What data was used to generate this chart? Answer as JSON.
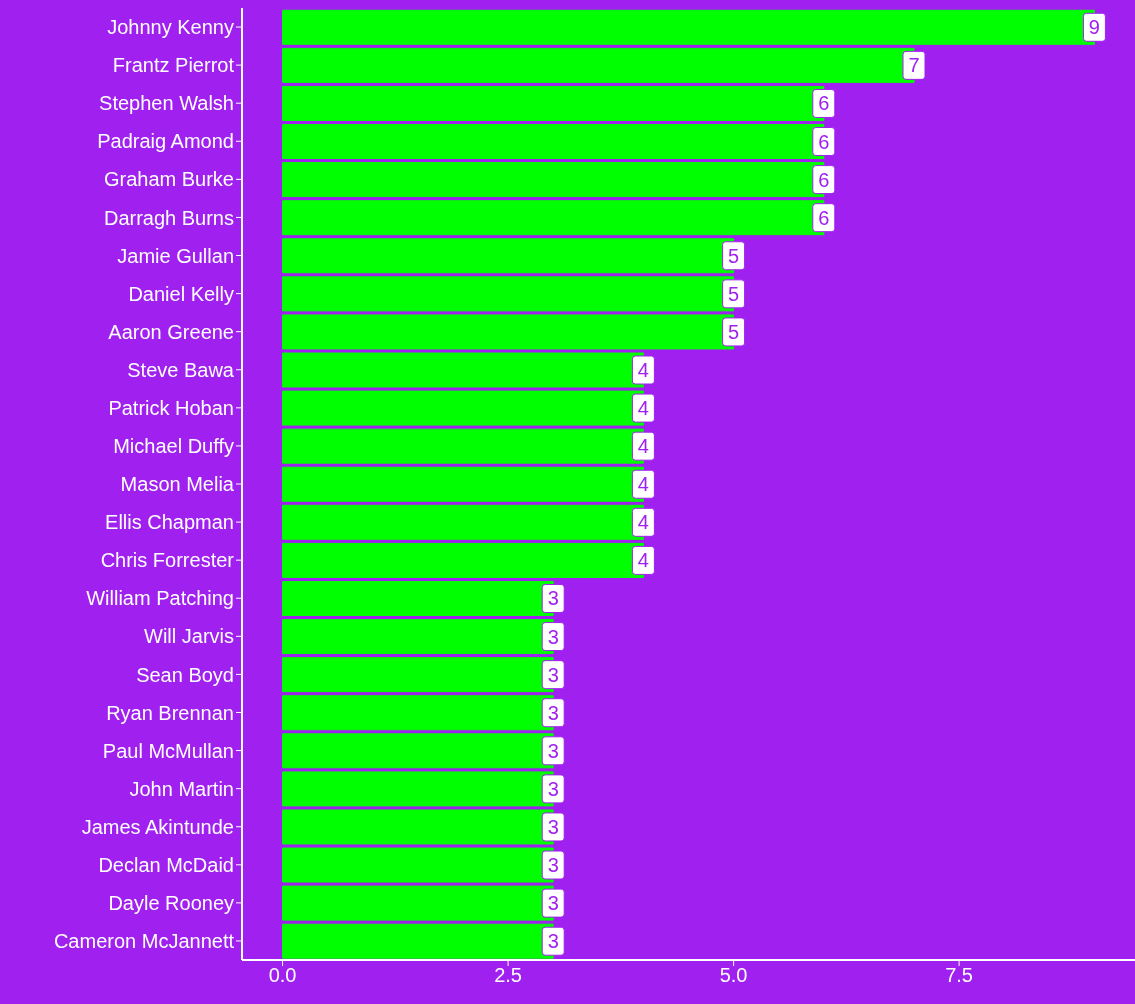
{
  "chart_data": {
    "type": "bar",
    "orientation": "horizontal",
    "categories": [
      "Johnny Kenny",
      "Frantz Pierrot",
      "Stephen Walsh",
      "Padraig Amond",
      "Graham Burke",
      "Darragh Burns",
      "Jamie Gullan",
      "Daniel Kelly",
      "Aaron Greene",
      "Steve Bawa",
      "Patrick Hoban",
      "Michael Duffy",
      "Mason Melia",
      "Ellis Chapman",
      "Chris Forrester",
      "William Patching",
      "Will Jarvis",
      "Sean Boyd",
      "Ryan Brennan",
      "Paul McMullan",
      "John Martin",
      "James Akintunde",
      "Declan McDaid",
      "Dayle Rooney",
      "Cameron McJannett"
    ],
    "values": [
      9,
      7,
      6,
      6,
      6,
      6,
      5,
      5,
      5,
      4,
      4,
      4,
      4,
      4,
      4,
      3,
      3,
      3,
      3,
      3,
      3,
      3,
      3,
      3,
      3
    ],
    "color": "#00ff00",
    "xlim": [
      -0.45,
      9.45
    ],
    "xticks": [
      {
        "value": 0,
        "label": "0.0"
      },
      {
        "value": 2.5,
        "label": "2.5"
      },
      {
        "value": 5,
        "label": "5.0"
      },
      {
        "value": 7.5,
        "label": "7.5"
      }
    ],
    "data_labels": true
  }
}
